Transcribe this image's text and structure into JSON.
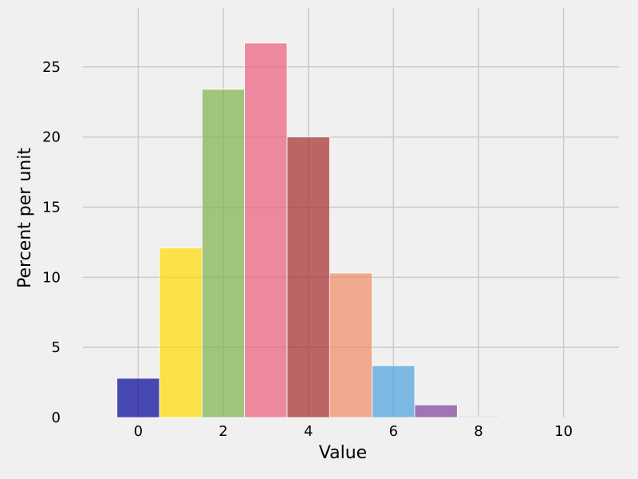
{
  "chart_data": {
    "type": "bar",
    "title": "",
    "xlabel": "Value",
    "ylabel": "Percent per unit",
    "xlim": [
      -1.3,
      11.3
    ],
    "ylim": [
      0,
      29.2
    ],
    "grid": true,
    "legend": "none",
    "x_ticks": [
      0,
      2,
      4,
      6,
      8,
      10
    ],
    "y_ticks": [
      0,
      5,
      10,
      15,
      20,
      25
    ],
    "bin_width": 1,
    "bars": [
      {
        "x": 0,
        "value": 2.8,
        "color": "#000099"
      },
      {
        "x": 1,
        "value": 12.1,
        "color": "#ffdc00"
      },
      {
        "x": 2,
        "value": 23.4,
        "color": "#7fb04b"
      },
      {
        "x": 3,
        "value": 26.7,
        "color": "#ea5c7a"
      },
      {
        "x": 4,
        "value": 20.0,
        "color": "#a52a2a"
      },
      {
        "x": 5,
        "value": 10.3,
        "color": "#ef8a62"
      },
      {
        "x": 6,
        "value": 3.7,
        "color": "#4c9fdb"
      },
      {
        "x": 7,
        "value": 0.9,
        "color": "#7f3f98"
      },
      {
        "x": 8,
        "value": 0.1,
        "color": "#bbbbbb"
      }
    ],
    "bar_opacity": 0.7,
    "grid_color": "#cbcbcb"
  }
}
